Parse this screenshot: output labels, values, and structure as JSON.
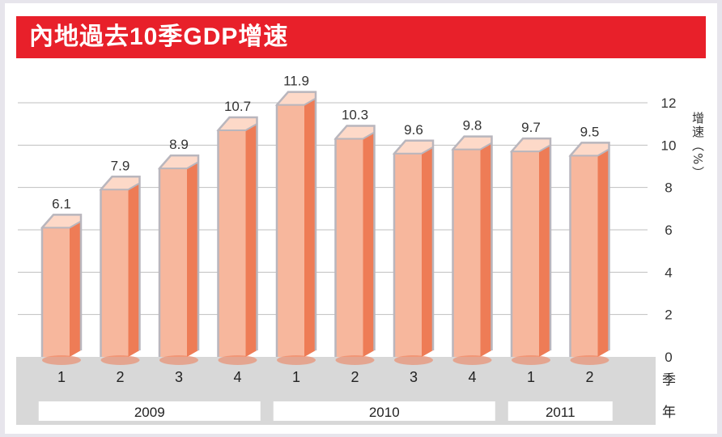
{
  "chart_data": {
    "type": "bar",
    "title": "內地過去10季GDP增速",
    "ylabel": "增速（%）",
    "ylim": [
      0,
      12
    ],
    "yticks": [
      "0",
      "2",
      "4",
      "6",
      "8",
      "10",
      "12"
    ],
    "grid": true,
    "categories": [
      "1",
      "2",
      "3",
      "4",
      "1",
      "2",
      "3",
      "4",
      "1",
      "2"
    ],
    "values": [
      6.1,
      7.9,
      8.9,
      10.7,
      11.9,
      10.3,
      9.6,
      9.8,
      9.7,
      9.5
    ],
    "value_labels": [
      "6.1",
      "7.9",
      "8.9",
      "10.7",
      "11.9",
      "10.3",
      "9.6",
      "9.8",
      "9.7",
      "9.5"
    ],
    "xlabel": "季",
    "year_axis_label": "年",
    "years": [
      {
        "label": "2009",
        "count": 4
      },
      {
        "label": "2010",
        "count": 4
      },
      {
        "label": "2011",
        "count": 2
      }
    ],
    "colors": {
      "title_bg": "#e8202a",
      "bar_front": "#f7b79d",
      "bar_side": "#ee7c56",
      "bar_top": "#fdd9c8",
      "bar_outline": "#b9b6bd",
      "axis_band": "#d8d8d8",
      "grid": "#bfbfbf"
    }
  }
}
